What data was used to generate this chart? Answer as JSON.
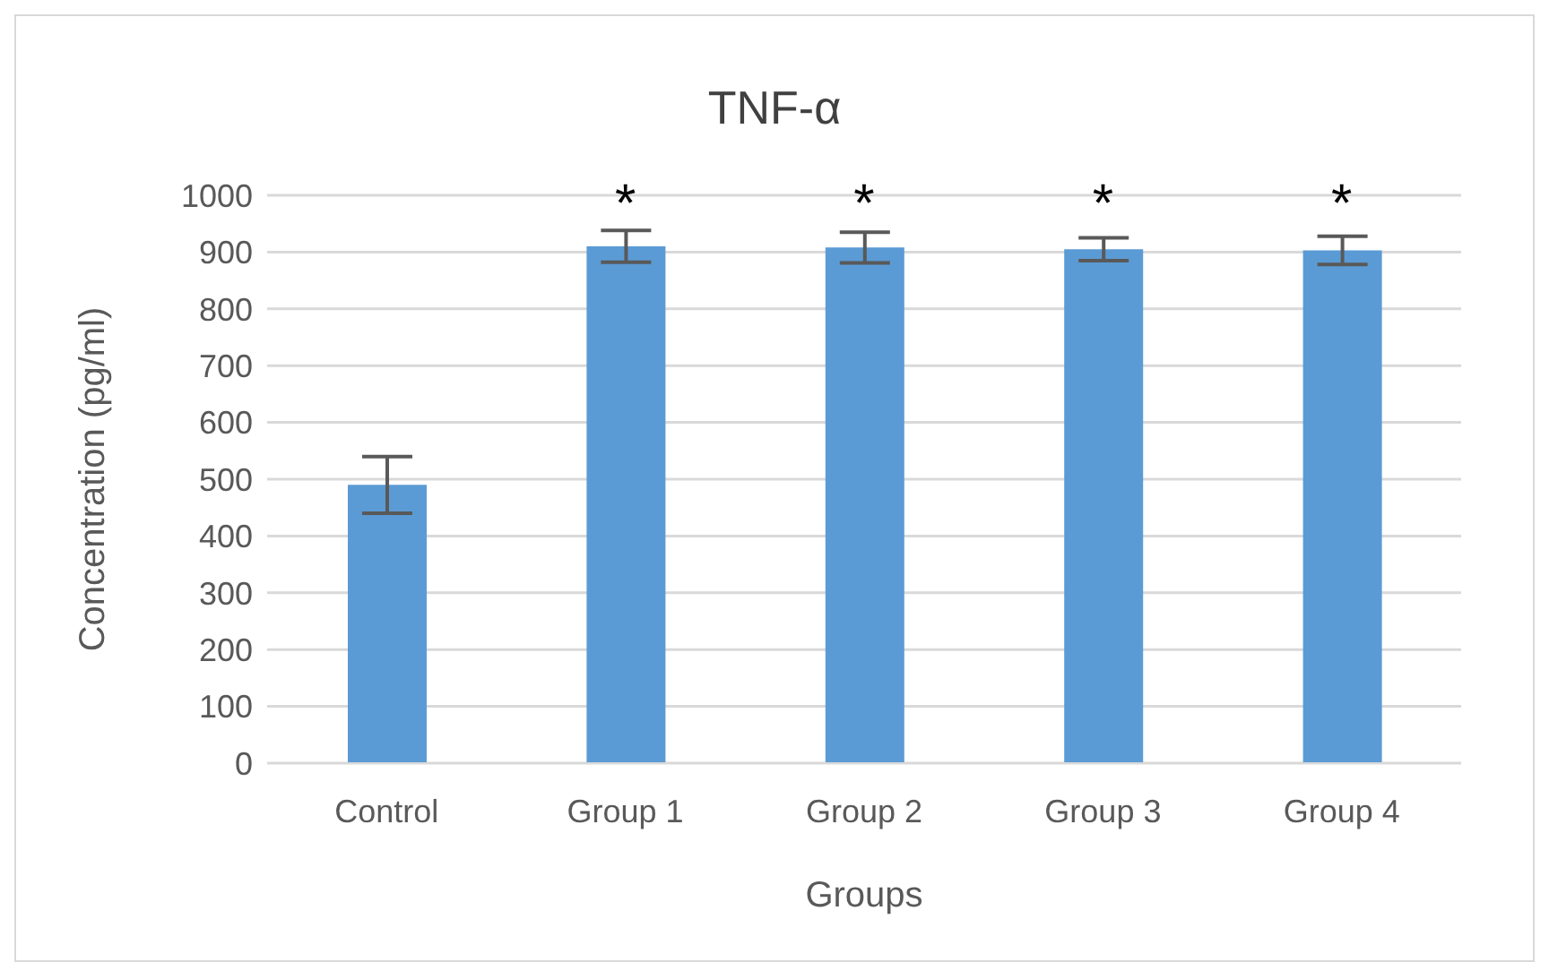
{
  "chart_data": {
    "type": "bar",
    "title": "TNF-α",
    "xlabel": "Groups",
    "ylabel": "Concentration (pg/ml)",
    "categories": [
      "Control",
      "Group 1",
      "Group 2",
      "Group 3",
      "Group 4"
    ],
    "values": [
      490,
      910,
      908,
      905,
      903
    ],
    "errors": [
      50,
      28,
      27,
      20,
      25
    ],
    "color": "#5b9bd5",
    "ylim": [
      0,
      1000
    ],
    "yticks": [
      0,
      100,
      200,
      300,
      400,
      500,
      600,
      700,
      800,
      900,
      1000
    ],
    "grid": "y",
    "legend": false,
    "annotations": [
      "*",
      "*",
      "*",
      "*"
    ]
  }
}
